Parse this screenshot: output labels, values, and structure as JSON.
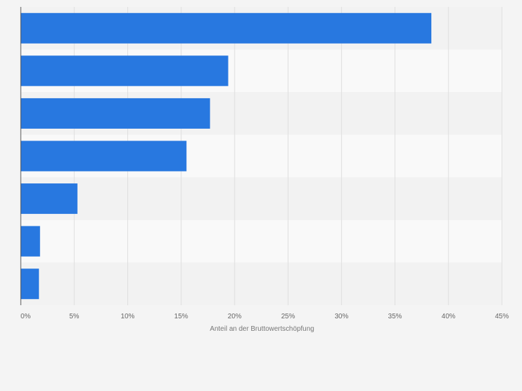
{
  "chart_data": {
    "type": "bar",
    "orientation": "horizontal",
    "categories": [
      "",
      "",
      "",
      "",
      "",
      "",
      ""
    ],
    "values": [
      38.4,
      19.4,
      17.7,
      15.5,
      5.3,
      1.8,
      1.7
    ],
    "xlabel": "Anteil an der Bruttowertschöpfung",
    "ylabel": "",
    "xlim": [
      0,
      45
    ],
    "x_ticks": [
      0,
      5,
      10,
      15,
      20,
      25,
      30,
      35,
      40,
      45
    ],
    "tick_labels": [
      "0%",
      "5%",
      "10%",
      "15%",
      "20%",
      "25%",
      "30%",
      "35%",
      "40%",
      "45%"
    ],
    "grid": true,
    "legend": "none"
  },
  "colors": {
    "bar": "#2878e0",
    "background": "#f4f4f4",
    "band_light": "#f9f9f9",
    "band_dark": "#f2f2f2",
    "grid": "#dedede",
    "axis": "#555555",
    "tick_text": "#666666",
    "label_text": "#777777"
  }
}
